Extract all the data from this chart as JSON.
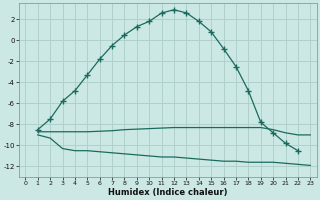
{
  "xlabel": "Humidex (Indice chaleur)",
  "bg_color": "#cce8e4",
  "grid_color": "#b0d0cc",
  "line_color": "#1a6b5e",
  "xlim": [
    -0.5,
    23.5
  ],
  "ylim": [
    -13,
    3.5
  ],
  "yticks": [
    2,
    0,
    -2,
    -4,
    -6,
    -8,
    -10,
    -12
  ],
  "xticks": [
    0,
    1,
    2,
    3,
    4,
    5,
    6,
    7,
    8,
    9,
    10,
    11,
    12,
    13,
    14,
    15,
    16,
    17,
    18,
    19,
    20,
    21,
    22,
    23
  ],
  "line1_x": [
    1,
    2,
    3,
    4,
    5,
    6,
    7,
    8,
    9,
    10,
    11,
    12,
    13,
    14,
    15,
    16,
    17,
    18,
    19,
    20,
    21,
    22
  ],
  "line1_y": [
    -8.5,
    -7.5,
    -5.8,
    -4.8,
    -3.3,
    -1.8,
    -0.5,
    0.5,
    1.3,
    1.8,
    2.6,
    2.9,
    2.6,
    1.8,
    0.8,
    -0.8,
    -2.5,
    -4.8,
    -7.8,
    -8.8,
    -9.8,
    -10.5
  ],
  "line2_x": [
    1,
    2,
    3,
    4,
    5,
    6,
    7,
    8,
    9,
    10,
    11,
    12,
    13,
    14,
    15,
    16,
    17,
    18,
    19,
    20,
    21,
    22,
    23
  ],
  "line2_y": [
    -8.7,
    -8.7,
    -8.7,
    -8.7,
    -8.7,
    -8.65,
    -8.6,
    -8.5,
    -8.45,
    -8.4,
    -8.35,
    -8.3,
    -8.3,
    -8.3,
    -8.3,
    -8.3,
    -8.3,
    -8.3,
    -8.3,
    -8.5,
    -8.8,
    -9.0,
    -9.0
  ],
  "line3_x": [
    1,
    2,
    3,
    4,
    5,
    6,
    7,
    8,
    9,
    10,
    11,
    12,
    13,
    14,
    15,
    16,
    17,
    18,
    19,
    20,
    21,
    22,
    23
  ],
  "line3_y": [
    -9.0,
    -9.3,
    -10.3,
    -10.5,
    -10.5,
    -10.6,
    -10.7,
    -10.8,
    -10.9,
    -11.0,
    -11.1,
    -11.1,
    -11.2,
    -11.3,
    -11.4,
    -11.5,
    -11.5,
    -11.6,
    -11.6,
    -11.6,
    -11.7,
    -11.8,
    -11.9
  ]
}
